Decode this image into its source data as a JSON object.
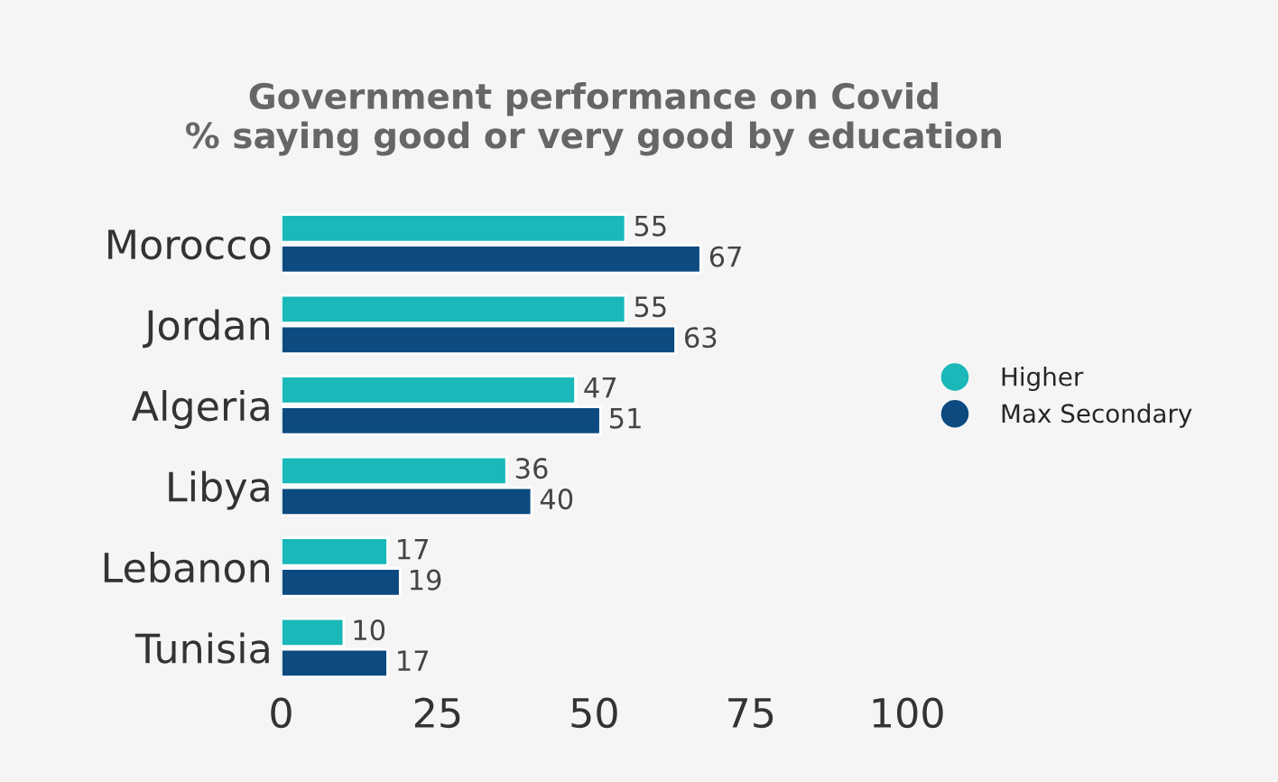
{
  "chart_data": {
    "type": "bar",
    "orientation": "horizontal",
    "title": "Government performance on Covid\n% saying good or very good by education",
    "categories": [
      "Morocco",
      "Jordan",
      "Algeria",
      "Libya",
      "Lebanon",
      "Tunisia"
    ],
    "series": [
      {
        "name": "Higher",
        "color": "#1ab8b8",
        "values": [
          55,
          55,
          47,
          36,
          17,
          10
        ]
      },
      {
        "name": "Max Secondary",
        "color": "#0c4a80",
        "values": [
          67,
          63,
          51,
          40,
          19,
          17
        ]
      }
    ],
    "xlim": [
      0,
      100
    ],
    "xticks": [
      0,
      25,
      50,
      75,
      100
    ],
    "data_labels": true,
    "grid": false,
    "legend": "right",
    "marker": "circle"
  }
}
